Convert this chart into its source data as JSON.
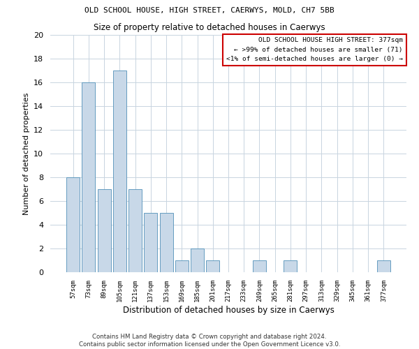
{
  "title": "OLD SCHOOL HOUSE, HIGH STREET, CAERWYS, MOLD, CH7 5BB",
  "subtitle": "Size of property relative to detached houses in Caerwys",
  "xlabel": "Distribution of detached houses by size in Caerwys",
  "ylabel": "Number of detached properties",
  "categories": [
    "57sqm",
    "73sqm",
    "89sqm",
    "105sqm",
    "121sqm",
    "137sqm",
    "153sqm",
    "169sqm",
    "185sqm",
    "201sqm",
    "217sqm",
    "233sqm",
    "249sqm",
    "265sqm",
    "281sqm",
    "297sqm",
    "313sqm",
    "329sqm",
    "345sqm",
    "361sqm",
    "377sqm"
  ],
  "values": [
    8,
    16,
    7,
    17,
    7,
    5,
    5,
    1,
    2,
    1,
    0,
    0,
    1,
    0,
    1,
    0,
    0,
    0,
    0,
    0,
    1
  ],
  "bar_color": "#c8d8e8",
  "bar_edge_color": "#5090b8",
  "ylim": [
    0,
    20
  ],
  "yticks": [
    0,
    2,
    4,
    6,
    8,
    10,
    12,
    14,
    16,
    18,
    20
  ],
  "annotation_box_text": "OLD SCHOOL HOUSE HIGH STREET: 377sqm\n← >99% of detached houses are smaller (71)\n<1% of semi-detached houses are larger (0) →",
  "annotation_box_color": "#ffffff",
  "annotation_box_edge_color": "#cc0000",
  "footer_line1": "Contains HM Land Registry data © Crown copyright and database right 2024.",
  "footer_line2": "Contains public sector information licensed under the Open Government Licence v3.0.",
  "background_color": "#ffffff",
  "grid_color": "#c8d4e0"
}
